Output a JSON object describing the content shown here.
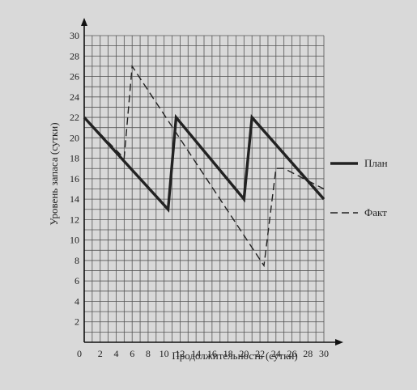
{
  "chart_data": {
    "type": "line",
    "xlabel": "Продолжительность (сутки)",
    "ylabel": "Уровень запаса (сутки)",
    "xlim": [
      0,
      30
    ],
    "ylim": [
      0,
      30
    ],
    "x_ticks": [
      0,
      2,
      4,
      6,
      8,
      10,
      12,
      14,
      16,
      18,
      20,
      22,
      24,
      26,
      28,
      30
    ],
    "y_ticks": [
      2,
      4,
      6,
      8,
      10,
      12,
      14,
      16,
      18,
      20,
      22,
      24,
      26,
      28,
      30
    ],
    "grid": true,
    "legend_position": "right",
    "series": [
      {
        "name": "План",
        "style": "solid-thick",
        "color": "#222222",
        "points": [
          [
            0,
            22
          ],
          [
            10.5,
            13
          ],
          [
            11.5,
            22
          ],
          [
            20,
            14
          ],
          [
            21,
            22
          ],
          [
            30,
            14
          ]
        ]
      },
      {
        "name": "Факт",
        "style": "dashed",
        "color": "#222222",
        "points": [
          [
            0,
            22
          ],
          [
            5,
            18
          ],
          [
            6,
            27
          ],
          [
            22.5,
            7.5
          ],
          [
            24,
            17
          ],
          [
            25,
            17
          ],
          [
            30,
            15
          ]
        ]
      }
    ]
  }
}
